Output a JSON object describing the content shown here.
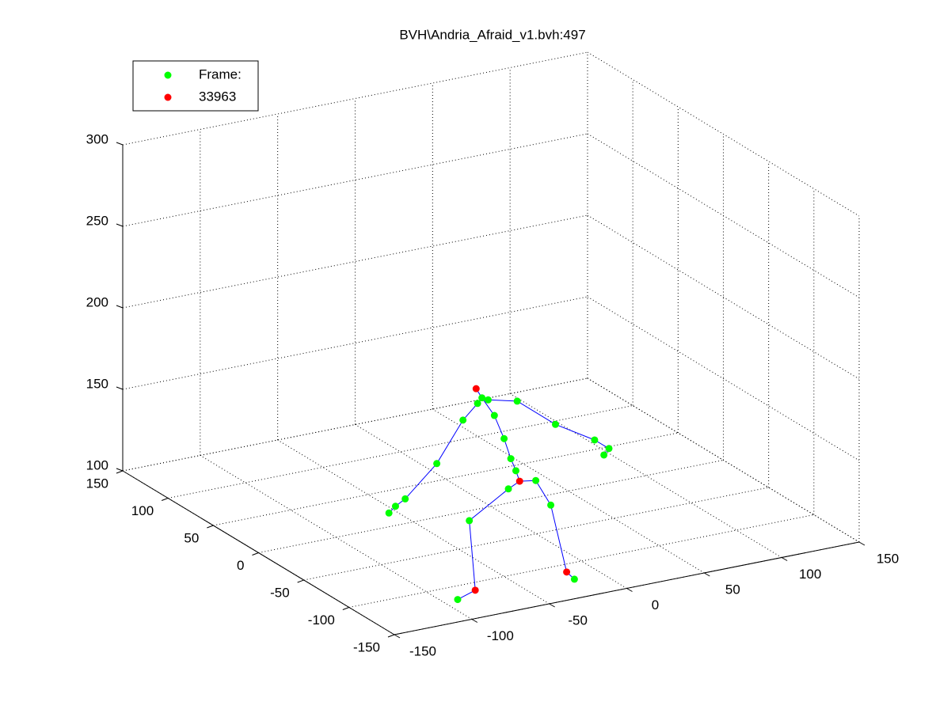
{
  "chart_data": {
    "type": "scatter3d",
    "title": "BVH\\Andria_Afraid_v1.bvh:497",
    "series": [
      {
        "name": "Frame:",
        "color": "#00ff00",
        "x": [
          24,
          20,
          28,
          25,
          19,
          14,
          12,
          10,
          -18,
          -46,
          -54,
          -60,
          45,
          58,
          71,
          75,
          70,
          -1,
          -35,
          -91,
          19,
          17,
          -18
        ],
        "y": [
          51,
          49,
          51,
          39,
          18,
          2,
          -7,
          48,
          29,
          16,
          13,
          10,
          48,
          28,
          7,
          -2,
          -5,
          -21,
          -36,
          -119,
          -17,
          -37,
          -123
        ],
        "z": [
          145,
          143,
          143,
          138,
          132,
          126,
          122,
          135,
          120,
          108,
          106,
          104,
          140,
          130,
          125,
          122,
          120,
          118,
          110,
          100,
          118,
          110,
          100
        ]
      },
      {
        "name": "33963",
        "color": "#ff0000",
        "x": [
          22,
          8,
          -75,
          -16
        ],
        "y": [
          54,
          -18,
          -111,
          -111
        ],
        "z": [
          150,
          120,
          100,
          100
        ]
      }
    ],
    "lines": {
      "color": "#0000ff",
      "x": [
        22,
        24,
        25,
        19,
        14,
        12,
        8,
        null,
        24,
        20,
        10,
        -18,
        -46,
        -54,
        -60,
        null,
        24,
        28,
        45,
        58,
        71,
        75,
        70,
        null,
        8,
        -1,
        -35,
        -75,
        -91,
        null,
        8,
        19,
        17,
        -16,
        -18
      ],
      "y": [
        54,
        51,
        39,
        18,
        2,
        -7,
        -18,
        null,
        51,
        49,
        48,
        29,
        16,
        13,
        10,
        null,
        51,
        51,
        48,
        28,
        7,
        -2,
        -5,
        null,
        -18,
        -21,
        -36,
        -111,
        -119,
        null,
        -18,
        -17,
        -37,
        -111,
        -123
      ],
      "z": [
        150,
        145,
        138,
        132,
        126,
        122,
        120,
        null,
        145,
        143,
        135,
        120,
        108,
        106,
        104,
        null,
        145,
        143,
        140,
        130,
        125,
        122,
        120,
        null,
        120,
        118,
        110,
        100,
        100,
        null,
        120,
        118,
        110,
        100,
        100
      ]
    },
    "xlim": [
      -150,
      150
    ],
    "ylim": [
      -150,
      150
    ],
    "zlim": [
      100,
      300
    ],
    "xticks": [
      -150,
      -100,
      -50,
      0,
      50,
      100,
      150
    ],
    "yticks": [
      -150,
      -100,
      -50,
      0,
      50,
      100,
      150
    ],
    "zticks": [
      100,
      150,
      200,
      250,
      300
    ],
    "grid": true,
    "legend": "northwest"
  }
}
